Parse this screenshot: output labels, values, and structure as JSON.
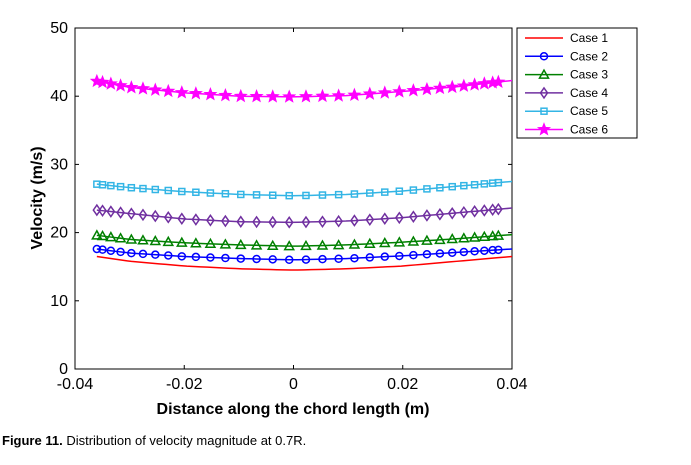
{
  "chart_data": {
    "type": "line",
    "title": "",
    "xlabel": "Distance along the chord length (m)",
    "ylabel": "Velocity (m/s)",
    "xlim": [
      -0.04,
      0.04
    ],
    "ylim": [
      0,
      50
    ],
    "xticks": [
      -0.04,
      -0.02,
      0,
      0.02,
      0.04
    ],
    "xtick_labels": [
      "-0.04",
      "-0.02",
      "0",
      "0.02",
      "0.04"
    ],
    "yticks": [
      0,
      10,
      20,
      30,
      40,
      50
    ],
    "ytick_labels": [
      "0",
      "10",
      "20",
      "30",
      "40",
      "50"
    ],
    "grid": false,
    "legend_position": "top-right outside",
    "series": [
      {
        "name": "Case 1",
        "color": "#ff0000",
        "marker": "none",
        "x": [
          -0.036,
          -0.03,
          -0.02,
          -0.01,
          0,
          0.01,
          0.02,
          0.03,
          0.04
        ],
        "y": [
          16.5,
          15.8,
          15.1,
          14.7,
          14.5,
          14.7,
          15.1,
          15.8,
          16.5
        ]
      },
      {
        "name": "Case 2",
        "color": "#0000ff",
        "marker": "circle",
        "x": [
          -0.036,
          -0.03,
          -0.02,
          -0.01,
          0,
          0.01,
          0.02,
          0.03,
          0.04
        ],
        "y": [
          17.6,
          17.0,
          16.5,
          16.2,
          16.0,
          16.2,
          16.6,
          17.1,
          17.6
        ]
      },
      {
        "name": "Case 3",
        "color": "#008000",
        "marker": "triangle",
        "x": [
          -0.036,
          -0.03,
          -0.02,
          -0.01,
          0,
          0.01,
          0.02,
          0.03,
          0.04
        ],
        "y": [
          19.6,
          19.0,
          18.5,
          18.2,
          18.0,
          18.2,
          18.6,
          19.1,
          19.7
        ]
      },
      {
        "name": "Case 4",
        "color": "#7030a0",
        "marker": "diamond",
        "x": [
          -0.036,
          -0.03,
          -0.02,
          -0.01,
          0,
          0.01,
          0.02,
          0.03,
          0.04
        ],
        "y": [
          23.3,
          22.8,
          22.0,
          21.6,
          21.5,
          21.7,
          22.2,
          22.9,
          23.6
        ]
      },
      {
        "name": "Case 5",
        "color": "#33b5e5",
        "marker": "square",
        "x": [
          -0.036,
          -0.03,
          -0.02,
          -0.01,
          0,
          0.01,
          0.02,
          0.03,
          0.04
        ],
        "y": [
          27.1,
          26.6,
          26.0,
          25.6,
          25.4,
          25.6,
          26.1,
          26.8,
          27.5
        ]
      },
      {
        "name": "Case 6",
        "color": "#ff00ff",
        "marker": "star",
        "x": [
          -0.036,
          -0.03,
          -0.02,
          -0.01,
          0,
          0.01,
          0.02,
          0.03,
          0.04
        ],
        "y": [
          42.2,
          41.3,
          40.5,
          40.0,
          39.9,
          40.1,
          40.7,
          41.4,
          42.3
        ]
      }
    ]
  },
  "caption": {
    "label": "Figure 11.",
    "text": "Distribution of velocity magnitude at 0.7R."
  }
}
